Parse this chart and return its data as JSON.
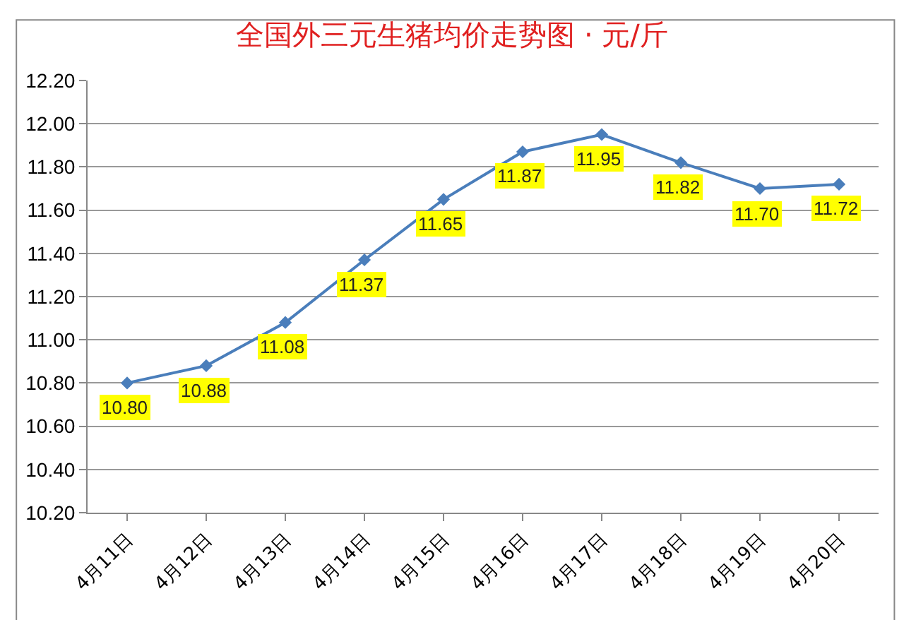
{
  "chart_data": {
    "type": "line",
    "title": "全国外三元生猪均价走势图 · 元/斤",
    "categories": [
      "4月11日",
      "4月12日",
      "4月13日",
      "4月14日",
      "4月15日",
      "4月16日",
      "4月17日",
      "4月18日",
      "4月19日",
      "4月20日"
    ],
    "series": [
      {
        "color": "#4a7ebb",
        "values": [
          10.8,
          10.88,
          11.08,
          11.37,
          11.65,
          11.87,
          11.95,
          11.82,
          11.7,
          11.72
        ],
        "value_labels": [
          "10.80",
          "10.88",
          "11.08",
          "11.37",
          "11.65",
          "11.87",
          "11.95",
          "11.82",
          "11.70",
          "11.72"
        ]
      }
    ],
    "ylim": [
      10.2,
      12.2
    ],
    "yticks": [
      {
        "value": 10.2,
        "label": "10.20"
      },
      {
        "value": 10.4,
        "label": "10.40"
      },
      {
        "value": 10.6,
        "label": "10.60"
      },
      {
        "value": 10.8,
        "label": "10.80"
      },
      {
        "value": 11.0,
        "label": "11.00"
      },
      {
        "value": 11.2,
        "label": "11.20"
      },
      {
        "value": 11.4,
        "label": "11.40"
      },
      {
        "value": 11.6,
        "label": "11.60"
      },
      {
        "value": 11.8,
        "label": "11.80"
      },
      {
        "value": 12.0,
        "label": "12.00"
      },
      {
        "value": 12.2,
        "label": "12.20"
      }
    ],
    "grid": "y",
    "marker": "diamond",
    "line_style": "solid"
  }
}
